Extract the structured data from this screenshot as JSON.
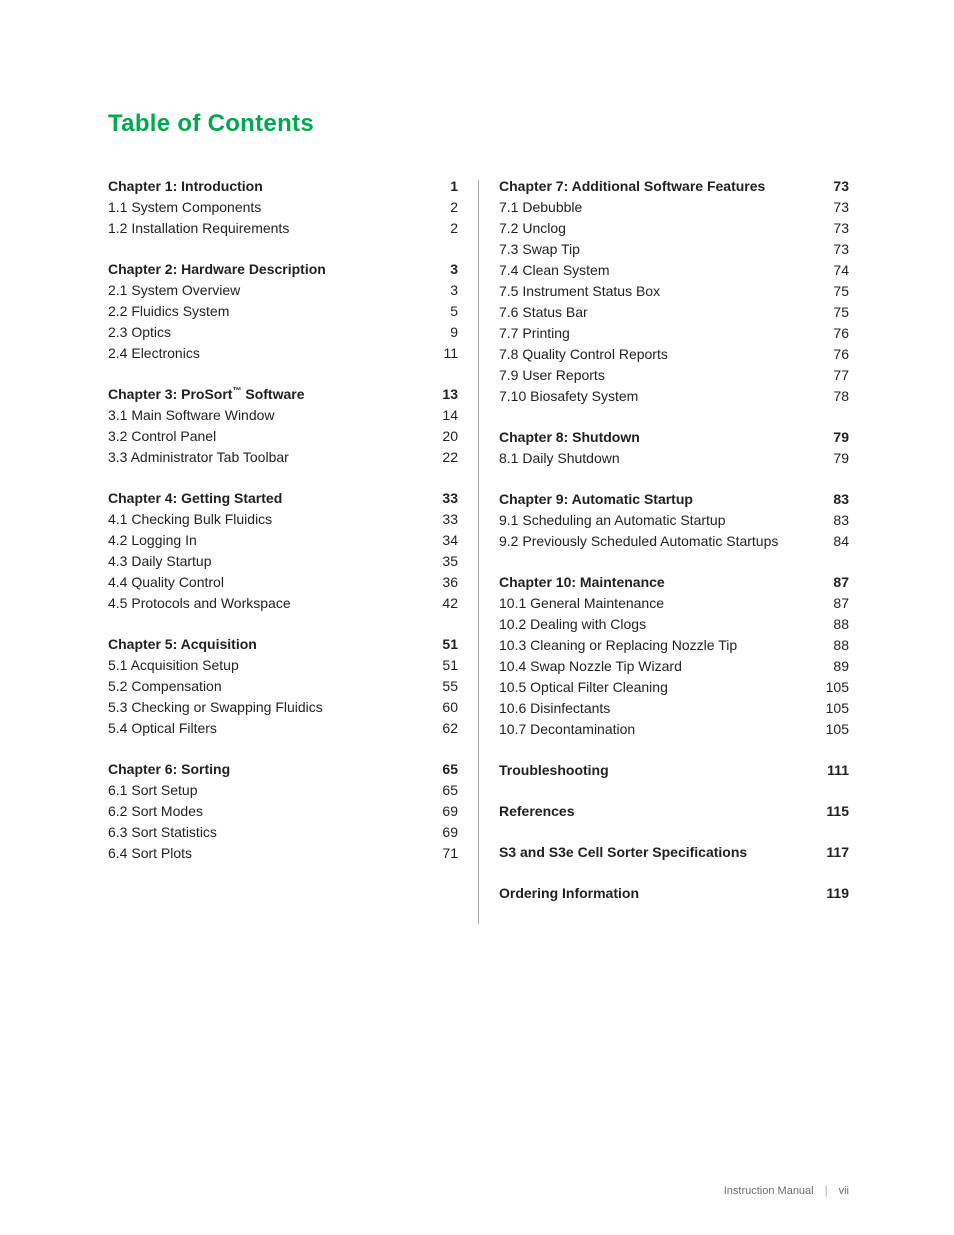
{
  "title": "Table of Contents",
  "title_color": "#00a94e",
  "text_color": "#231f20",
  "divider_color": "#a7a9ac",
  "background_color": "#ffffff",
  "font_family": "Helvetica, Arial, sans-serif",
  "body_font_size_pt": 10.5,
  "title_font_size_pt": 18,
  "leftColumn": [
    {
      "heading": {
        "label": "Chapter 1: Introduction",
        "page": "1"
      },
      "items": [
        {
          "label": "1.1 System Components",
          "page": "2"
        },
        {
          "label": "1.2 Installation Requirements",
          "page": "2"
        }
      ]
    },
    {
      "heading": {
        "label": "Chapter 2: Hardware Description",
        "page": "3"
      },
      "items": [
        {
          "label": "2.1 System Overview",
          "page": "3"
        },
        {
          "label": "2.2 Fluidics System",
          "page": "5"
        },
        {
          "label": "2.3 Optics",
          "page": "9"
        },
        {
          "label": "2.4 Electronics",
          "page": "11"
        }
      ]
    },
    {
      "heading": {
        "label_pre": "Chapter 3: ProSort",
        "tm": "™",
        "label_post": " Software",
        "page": "13"
      },
      "items": [
        {
          "label": "3.1 Main Software Window",
          "page": "14"
        },
        {
          "label": "3.2 Control Panel",
          "page": "20"
        },
        {
          "label": "3.3 Administrator Tab Toolbar",
          "page": "22"
        }
      ]
    },
    {
      "heading": {
        "label": "Chapter 4: Getting Started",
        "page": "33"
      },
      "items": [
        {
          "label": "4.1 Checking Bulk Fluidics",
          "page": "33"
        },
        {
          "label": "4.2 Logging In",
          "page": "34"
        },
        {
          "label": "4.3 Daily Startup",
          "page": "35"
        },
        {
          "label": "4.4 Quality Control",
          "page": "36"
        },
        {
          "label": "4.5 Protocols and Workspace",
          "page": "42"
        }
      ]
    },
    {
      "heading": {
        "label": "Chapter 5: Acquisition",
        "page": "51"
      },
      "items": [
        {
          "label": "5.1 Acquisition Setup",
          "page": "51"
        },
        {
          "label": "5.2 Compensation",
          "page": "55"
        },
        {
          "label": "5.3 Checking or Swapping Fluidics",
          "page": "60"
        },
        {
          "label": "5.4 Optical Filters",
          "page": "62"
        }
      ]
    },
    {
      "heading": {
        "label": "Chapter 6: Sorting",
        "page": "65"
      },
      "items": [
        {
          "label": "6.1 Sort Setup",
          "page": "65"
        },
        {
          "label": "6.2 Sort Modes",
          "page": "69"
        },
        {
          "label": "6.3 Sort Statistics",
          "page": "69"
        },
        {
          "label": "6.4 Sort Plots",
          "page": "71"
        }
      ]
    }
  ],
  "rightColumn": [
    {
      "heading": {
        "label": "Chapter 7: Additional Software Features",
        "page": "73"
      },
      "items": [
        {
          "label": "7.1 Debubble",
          "page": "73"
        },
        {
          "label": "7.2 Unclog",
          "page": "73"
        },
        {
          "label": "7.3 Swap Tip",
          "page": "73"
        },
        {
          "label": "7.4 Clean System",
          "page": "74"
        },
        {
          "label": "7.5 Instrument Status Box",
          "page": "75"
        },
        {
          "label": "7.6 Status Bar",
          "page": "75"
        },
        {
          "label": "7.7 Printing",
          "page": "76"
        },
        {
          "label": "7.8 Quality Control Reports",
          "page": "76"
        },
        {
          "label": "7.9 User Reports",
          "page": "77"
        },
        {
          "label": "7.10 Biosafety System",
          "page": "78"
        }
      ]
    },
    {
      "heading": {
        "label": "Chapter 8: Shutdown",
        "page": "79"
      },
      "items": [
        {
          "label": "8.1 Daily Shutdown",
          "page": "79"
        }
      ]
    },
    {
      "heading": {
        "label": "Chapter 9: Automatic Startup",
        "page": "83"
      },
      "items": [
        {
          "label": "9.1 Scheduling an Automatic Startup",
          "page": "83"
        },
        {
          "label": "9.2 Previously Scheduled Automatic Startups",
          "page": "84"
        }
      ]
    },
    {
      "heading": {
        "label": "Chapter 10: Maintenance",
        "page": "87"
      },
      "items": [
        {
          "label": "10.1 General Maintenance",
          "page": "87"
        },
        {
          "label": "10.2 Dealing with Clogs",
          "page": "88"
        },
        {
          "label": "10.3 Cleaning or Replacing Nozzle Tip",
          "page": "88"
        },
        {
          "label": "10.4 Swap Nozzle Tip Wizard",
          "page": "89"
        },
        {
          "label": "10.5 Optical Filter Cleaning",
          "page": "105"
        },
        {
          "label": "10.6 Disinfectants",
          "page": "105"
        },
        {
          "label": "10.7 Decontamination",
          "page": "105"
        }
      ]
    },
    {
      "heading": {
        "label": "Troubleshooting",
        "page": "111"
      },
      "items": []
    },
    {
      "heading": {
        "label": "References",
        "page": "115"
      },
      "items": []
    },
    {
      "heading": {
        "label": "S3 and S3e Cell Sorter Specifications",
        "page": "117"
      },
      "items": []
    },
    {
      "heading": {
        "label": "Ordering Information",
        "page": "119"
      },
      "items": []
    }
  ],
  "footer": {
    "label": "Instruction Manual",
    "separator": "|",
    "page_roman": "vii",
    "color": "#6d6e71"
  }
}
